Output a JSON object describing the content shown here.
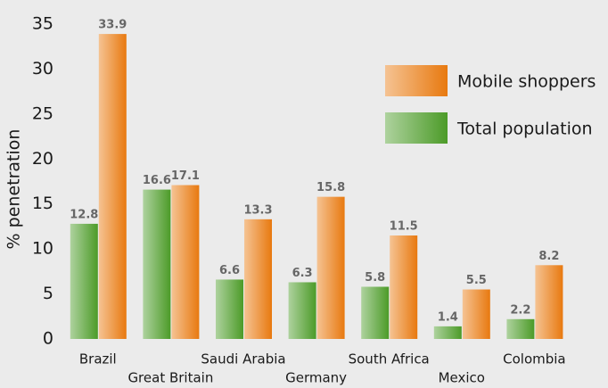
{
  "chart_data": {
    "type": "bar",
    "y_label": "% penetration",
    "categories": [
      "Brazil",
      "Great Britain",
      "Saudi Arabia",
      "Germany",
      "South Africa",
      "Mexico",
      "Colombia"
    ],
    "series": [
      {
        "name": "Mobile shoppers",
        "color": "#e8790f",
        "values": [
          33.9,
          17.1,
          13.3,
          15.8,
          11.5,
          5.5,
          8.2
        ]
      },
      {
        "name": "Total population",
        "color": "#4c9b28",
        "values": [
          12.8,
          16.6,
          6.6,
          6.3,
          5.8,
          1.4,
          2.2
        ]
      }
    ],
    "ylim": [
      0,
      35
    ],
    "yticks": [
      0,
      5,
      10,
      15,
      20,
      25,
      30,
      35
    ],
    "grid": false,
    "legend": "upper right"
  }
}
